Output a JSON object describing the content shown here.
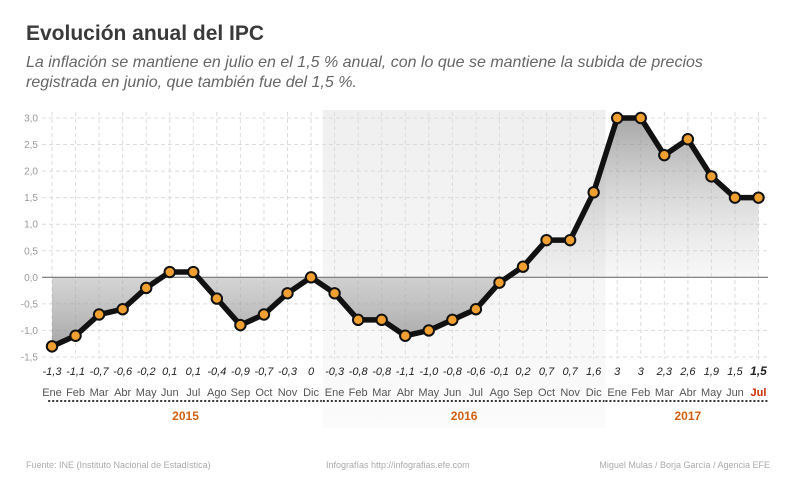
{
  "header": {
    "title": "Evolución anual del IPC",
    "subtitle": "La inflación se mantiene en julio en el 1,5 % anual, con lo que se mantiene la subida de precios registrada en junio, que también fue del 1,5 %."
  },
  "chart_data": {
    "type": "line",
    "title": "Evolución anual del IPC",
    "ylim": [
      -1.5,
      3.0
    ],
    "yticks": [
      -1.5,
      -1.0,
      -0.5,
      0.0,
      0.5,
      1.0,
      1.5,
      2.0,
      2.5,
      3.0
    ],
    "ytick_labels": [
      "-1,5",
      "-1,0",
      "-0,5",
      "0,0",
      "0,5",
      "1,0",
      "1,5",
      "2,0",
      "2,5",
      "3,0"
    ],
    "grid": true,
    "categories": [
      "Ene",
      "Feb",
      "Mar",
      "Abr",
      "May",
      "Jun",
      "Jul",
      "Ago",
      "Sep",
      "Oct",
      "Nov",
      "Dic",
      "Ene",
      "Feb",
      "Mar",
      "Abr",
      "May",
      "Jun",
      "Jul",
      "Ago",
      "Sep",
      "Oct",
      "Nov",
      "Dic",
      "Ene",
      "Feb",
      "Mar",
      "Abr",
      "May",
      "Jun",
      "Jul"
    ],
    "values": [
      -1.3,
      -1.1,
      -0.7,
      -0.6,
      -0.2,
      0.1,
      0.1,
      -0.4,
      -0.9,
      -0.7,
      -0.3,
      0.0,
      -0.3,
      -0.8,
      -0.8,
      -1.1,
      -1.0,
      -0.8,
      -0.6,
      -0.1,
      0.2,
      0.7,
      0.7,
      1.6,
      3.0,
      3.0,
      2.3,
      2.6,
      1.9,
      1.5,
      1.5
    ],
    "value_labels": [
      "-1,3",
      "-1,1",
      "-0,7",
      "-0,6",
      "-0,2",
      "0,1",
      "0,1",
      "-0,4",
      "-0,9",
      "-0,7",
      "-0,3",
      "0",
      "-0,3",
      "-0,8",
      "-0,8",
      "-1,1",
      "-1,0",
      "-0,8",
      "-0,6",
      "-0,1",
      "0,2",
      "0,7",
      "0,7",
      "1,6",
      "3",
      "3",
      "2,3",
      "2,6",
      "1,9",
      "1,5",
      "1,5"
    ],
    "years": [
      {
        "label": "2015",
        "start": 0,
        "end": 11
      },
      {
        "label": "2016",
        "start": 12,
        "end": 23
      },
      {
        "label": "2017",
        "start": 24,
        "end": 30
      }
    ],
    "highlight_last": true
  },
  "colors": {
    "line": "#111111",
    "marker_fill": "#f0a030",
    "year_label": "#d06010",
    "highlight": "#cc2a00",
    "axis_label": "#999999",
    "grid": "#dcdcdc"
  },
  "footer": {
    "source": "Fuente: INE (Instituto Nacional de Estadística)",
    "site": "Infografías http://infografias.efe.com",
    "credits": "Miguel Mulas / Borja García / Agencia EFE"
  }
}
